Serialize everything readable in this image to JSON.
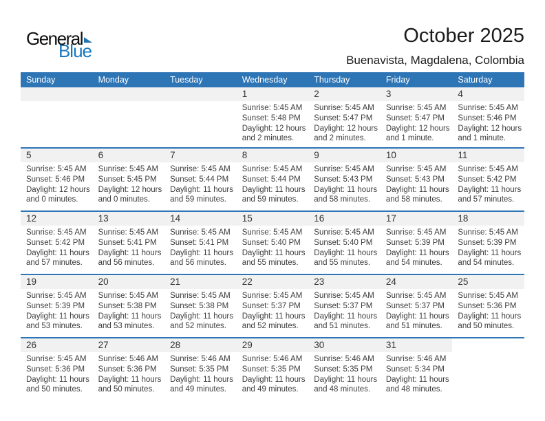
{
  "logo": {
    "general": "General",
    "blue": "Blue"
  },
  "header": {
    "title": "October 2025",
    "subtitle": "Buenavista, Magdalena, Colombia"
  },
  "colors": {
    "header_blue": "#2E75B6",
    "band_gray": "#F1F1F1",
    "logo_blue": "#1878BE"
  },
  "calendar": {
    "day_headers": [
      "Sunday",
      "Monday",
      "Tuesday",
      "Wednesday",
      "Thursday",
      "Friday",
      "Saturday"
    ],
    "weeks": [
      {
        "days": [
          {
            "date": "",
            "band": true,
            "lines": []
          },
          {
            "date": "",
            "band": true,
            "lines": []
          },
          {
            "date": "",
            "band": true,
            "lines": []
          },
          {
            "date": "1",
            "band": true,
            "lines": [
              "Sunrise: 5:45 AM",
              "Sunset: 5:48 PM",
              "Daylight: 12 hours",
              "and 2 minutes."
            ]
          },
          {
            "date": "2",
            "band": true,
            "lines": [
              "Sunrise: 5:45 AM",
              "Sunset: 5:47 PM",
              "Daylight: 12 hours",
              "and 2 minutes."
            ]
          },
          {
            "date": "3",
            "band": true,
            "lines": [
              "Sunrise: 5:45 AM",
              "Sunset: 5:47 PM",
              "Daylight: 12 hours",
              "and 1 minute."
            ]
          },
          {
            "date": "4",
            "band": true,
            "lines": [
              "Sunrise: 5:45 AM",
              "Sunset: 5:46 PM",
              "Daylight: 12 hours",
              "and 1 minute."
            ]
          }
        ]
      },
      {
        "days": [
          {
            "date": "5",
            "band": true,
            "lines": [
              "Sunrise: 5:45 AM",
              "Sunset: 5:46 PM",
              "Daylight: 12 hours",
              "and 0 minutes."
            ]
          },
          {
            "date": "6",
            "band": true,
            "lines": [
              "Sunrise: 5:45 AM",
              "Sunset: 5:45 PM",
              "Daylight: 12 hours",
              "and 0 minutes."
            ]
          },
          {
            "date": "7",
            "band": true,
            "lines": [
              "Sunrise: 5:45 AM",
              "Sunset: 5:44 PM",
              "Daylight: 11 hours",
              "and 59 minutes."
            ]
          },
          {
            "date": "8",
            "band": true,
            "lines": [
              "Sunrise: 5:45 AM",
              "Sunset: 5:44 PM",
              "Daylight: 11 hours",
              "and 59 minutes."
            ]
          },
          {
            "date": "9",
            "band": true,
            "lines": [
              "Sunrise: 5:45 AM",
              "Sunset: 5:43 PM",
              "Daylight: 11 hours",
              "and 58 minutes."
            ]
          },
          {
            "date": "10",
            "band": true,
            "lines": [
              "Sunrise: 5:45 AM",
              "Sunset: 5:43 PM",
              "Daylight: 11 hours",
              "and 58 minutes."
            ]
          },
          {
            "date": "11",
            "band": true,
            "lines": [
              "Sunrise: 5:45 AM",
              "Sunset: 5:42 PM",
              "Daylight: 11 hours",
              "and 57 minutes."
            ]
          }
        ]
      },
      {
        "days": [
          {
            "date": "12",
            "band": true,
            "lines": [
              "Sunrise: 5:45 AM",
              "Sunset: 5:42 PM",
              "Daylight: 11 hours",
              "and 57 minutes."
            ]
          },
          {
            "date": "13",
            "band": true,
            "lines": [
              "Sunrise: 5:45 AM",
              "Sunset: 5:41 PM",
              "Daylight: 11 hours",
              "and 56 minutes."
            ]
          },
          {
            "date": "14",
            "band": true,
            "lines": [
              "Sunrise: 5:45 AM",
              "Sunset: 5:41 PM",
              "Daylight: 11 hours",
              "and 56 minutes."
            ]
          },
          {
            "date": "15",
            "band": true,
            "lines": [
              "Sunrise: 5:45 AM",
              "Sunset: 5:40 PM",
              "Daylight: 11 hours",
              "and 55 minutes."
            ]
          },
          {
            "date": "16",
            "band": true,
            "lines": [
              "Sunrise: 5:45 AM",
              "Sunset: 5:40 PM",
              "Daylight: 11 hours",
              "and 55 minutes."
            ]
          },
          {
            "date": "17",
            "band": true,
            "lines": [
              "Sunrise: 5:45 AM",
              "Sunset: 5:39 PM",
              "Daylight: 11 hours",
              "and 54 minutes."
            ]
          },
          {
            "date": "18",
            "band": true,
            "lines": [
              "Sunrise: 5:45 AM",
              "Sunset: 5:39 PM",
              "Daylight: 11 hours",
              "and 54 minutes."
            ]
          }
        ]
      },
      {
        "days": [
          {
            "date": "19",
            "band": true,
            "lines": [
              "Sunrise: 5:45 AM",
              "Sunset: 5:39 PM",
              "Daylight: 11 hours",
              "and 53 minutes."
            ]
          },
          {
            "date": "20",
            "band": true,
            "lines": [
              "Sunrise: 5:45 AM",
              "Sunset: 5:38 PM",
              "Daylight: 11 hours",
              "and 53 minutes."
            ]
          },
          {
            "date": "21",
            "band": true,
            "lines": [
              "Sunrise: 5:45 AM",
              "Sunset: 5:38 PM",
              "Daylight: 11 hours",
              "and 52 minutes."
            ]
          },
          {
            "date": "22",
            "band": true,
            "lines": [
              "Sunrise: 5:45 AM",
              "Sunset: 5:37 PM",
              "Daylight: 11 hours",
              "and 52 minutes."
            ]
          },
          {
            "date": "23",
            "band": true,
            "lines": [
              "Sunrise: 5:45 AM",
              "Sunset: 5:37 PM",
              "Daylight: 11 hours",
              "and 51 minutes."
            ]
          },
          {
            "date": "24",
            "band": true,
            "lines": [
              "Sunrise: 5:45 AM",
              "Sunset: 5:37 PM",
              "Daylight: 11 hours",
              "and 51 minutes."
            ]
          },
          {
            "date": "25",
            "band": true,
            "lines": [
              "Sunrise: 5:45 AM",
              "Sunset: 5:36 PM",
              "Daylight: 11 hours",
              "and 50 minutes."
            ]
          }
        ]
      },
      {
        "days": [
          {
            "date": "26",
            "band": true,
            "lines": [
              "Sunrise: 5:45 AM",
              "Sunset: 5:36 PM",
              "Daylight: 11 hours",
              "and 50 minutes."
            ]
          },
          {
            "date": "27",
            "band": true,
            "lines": [
              "Sunrise: 5:46 AM",
              "Sunset: 5:36 PM",
              "Daylight: 11 hours",
              "and 50 minutes."
            ]
          },
          {
            "date": "28",
            "band": true,
            "lines": [
              "Sunrise: 5:46 AM",
              "Sunset: 5:35 PM",
              "Daylight: 11 hours",
              "and 49 minutes."
            ]
          },
          {
            "date": "29",
            "band": true,
            "lines": [
              "Sunrise: 5:46 AM",
              "Sunset: 5:35 PM",
              "Daylight: 11 hours",
              "and 49 minutes."
            ]
          },
          {
            "date": "30",
            "band": true,
            "lines": [
              "Sunrise: 5:46 AM",
              "Sunset: 5:35 PM",
              "Daylight: 11 hours",
              "and 48 minutes."
            ]
          },
          {
            "date": "31",
            "band": true,
            "lines": [
              "Sunrise: 5:46 AM",
              "Sunset: 5:34 PM",
              "Daylight: 11 hours",
              "and 48 minutes."
            ]
          },
          {
            "date": "",
            "band": false,
            "lines": []
          }
        ]
      }
    ]
  }
}
